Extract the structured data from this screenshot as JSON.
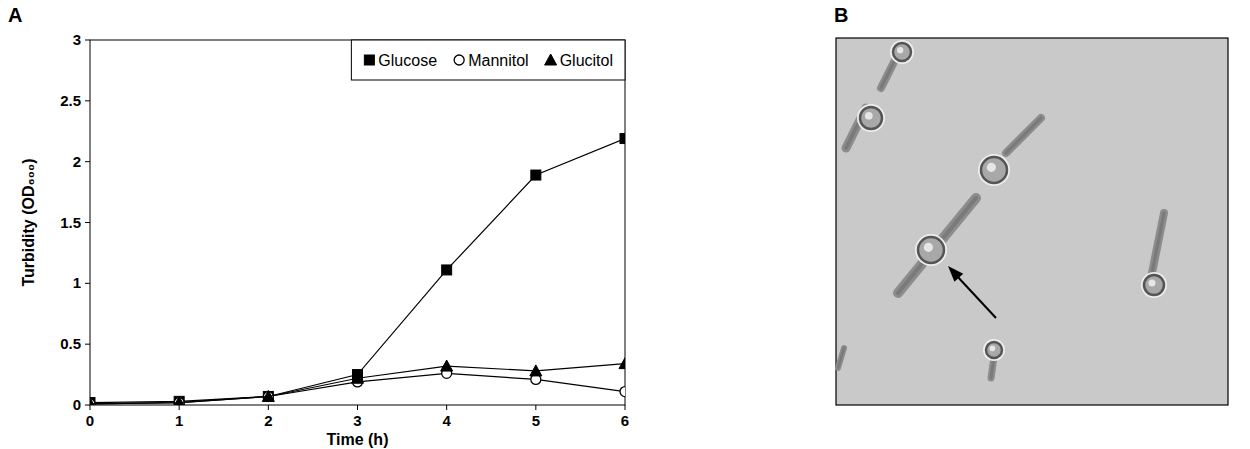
{
  "chart_data": [
    {
      "type": "line",
      "panel_label": "A",
      "x": [
        0,
        1,
        2,
        3,
        4,
        5,
        6
      ],
      "series": [
        {
          "name": "Glucose",
          "color": "#000000",
          "marker": "square",
          "line_style": "solid",
          "values": [
            0.02,
            0.03,
            0.07,
            0.25,
            1.11,
            1.89,
            2.19
          ]
        },
        {
          "name": "Mannitol",
          "color": "#000000",
          "marker": "open-circle",
          "line_style": "solid",
          "values": [
            0.01,
            0.02,
            0.07,
            0.19,
            0.26,
            0.21,
            0.11
          ]
        },
        {
          "name": "Glucitol",
          "color": "#000000",
          "marker": "triangle",
          "line_style": "solid",
          "values": [
            0.01,
            0.02,
            0.07,
            0.22,
            0.32,
            0.28,
            0.34
          ]
        }
      ],
      "x_label": "Time (h)",
      "y_label": "Turbidity (OD₆₀₀)",
      "xlim": [
        0,
        6
      ],
      "xticks": [
        0,
        1,
        2,
        3,
        4,
        5,
        6
      ],
      "ylim": [
        0,
        3
      ],
      "yticks": [
        0,
        0.5,
        1,
        1.5,
        2,
        2.5,
        3
      ],
      "grid": false,
      "legend": "top-right"
    },
    {
      "type": "image",
      "panel_label": "B"
    }
  ]
}
